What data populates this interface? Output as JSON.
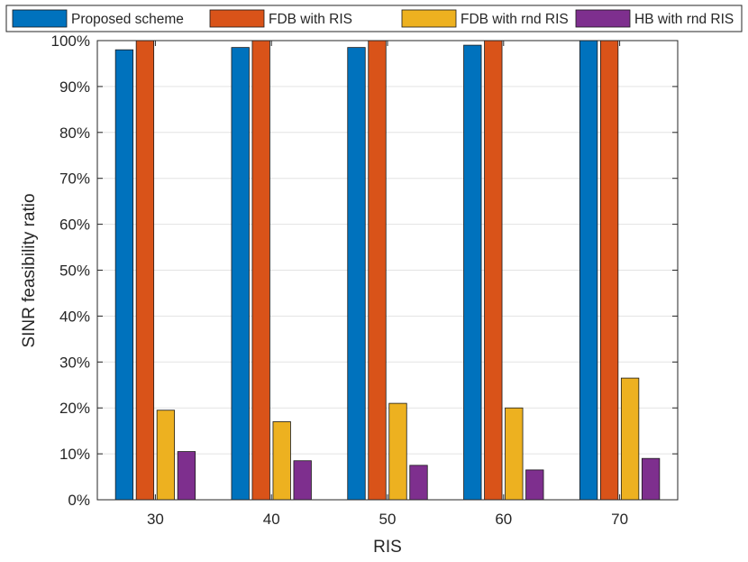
{
  "chart_data": {
    "type": "bar",
    "title": "",
    "xlabel": "RIS",
    "ylabel": "SINR feasibility ratio",
    "categories": [
      "30",
      "40",
      "50",
      "60",
      "70"
    ],
    "ylim": [
      0,
      100
    ],
    "yticks": [
      0,
      10,
      20,
      30,
      40,
      50,
      60,
      70,
      80,
      90,
      100
    ],
    "ytick_labels": [
      "0%",
      "10%",
      "20%",
      "30%",
      "40%",
      "50%",
      "60%",
      "70%",
      "80%",
      "90%",
      "100%"
    ],
    "grid": true,
    "legend_position": "top",
    "series": [
      {
        "name": "Proposed scheme",
        "color": "#0072BD",
        "values": [
          98,
          98.5,
          98.5,
          99,
          100
        ]
      },
      {
        "name": "FDB with RIS",
        "color": "#D95319",
        "values": [
          100,
          100,
          100,
          100,
          100
        ]
      },
      {
        "name": "FDB with rnd RIS",
        "color": "#EDB120",
        "values": [
          19.5,
          17,
          21,
          20,
          26.5
        ]
      },
      {
        "name": "HB with rnd RIS",
        "color": "#7E2F8E",
        "values": [
          10.5,
          8.5,
          7.5,
          6.5,
          9
        ]
      }
    ]
  }
}
